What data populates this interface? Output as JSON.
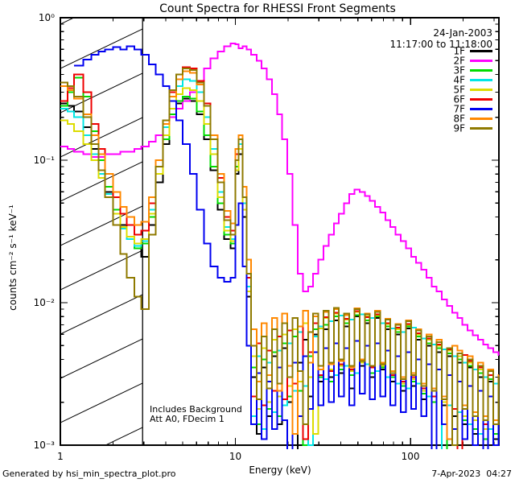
{
  "title": "Count Spectra for RHESSI Front Segments",
  "legend": {
    "date": "24-Jan-2003",
    "time_range": "11:17:00 to 11:18:00"
  },
  "notes": {
    "line1": "Includes Background",
    "line2": "Att A0, FDecim 1"
  },
  "footer": {
    "left": "Generated by hsi_min_spectra_plot.pro",
    "right": "7-Apr-2023  04:27"
  },
  "chart_data": {
    "type": "line",
    "style": "histogram-step",
    "title": "Count Spectra for RHESSI Front Segments",
    "xlabel": "Energy (keV)",
    "ylabel": "counts cm⁻² s⁻¹ keV⁻¹",
    "xscale": "log",
    "yscale": "log",
    "xlim": [
      1,
      320
    ],
    "ylim": [
      0.001,
      1.0
    ],
    "grid": false,
    "legend_position": "top-right",
    "hatched_low_energy_region_keV": [
      1.0,
      2.95
    ],
    "x_ticks": [
      {
        "value": 1,
        "label": "1"
      },
      {
        "value": 10,
        "label": "10"
      },
      {
        "value": 100,
        "label": "100"
      }
    ],
    "y_ticks": [
      {
        "value": 1,
        "label": "10⁰"
      },
      {
        "value": 0.1,
        "label": "10⁻¹"
      },
      {
        "value": 0.01,
        "label": "10⁻²"
      },
      {
        "value": 0.001,
        "label": "10⁻³"
      }
    ],
    "energies_keV": [
      1.0,
      1.1,
      1.2,
      1.35,
      1.5,
      1.65,
      1.8,
      2.0,
      2.2,
      2.4,
      2.65,
      2.9,
      3.2,
      3.5,
      3.85,
      4.2,
      4.6,
      5.0,
      5.5,
      6.0,
      6.6,
      7.2,
      7.9,
      8.6,
      9.4,
      10.0,
      10.45,
      11.0,
      11.6,
      12.3,
      13.2,
      14.1,
      15.1,
      16.2,
      17.3,
      18.5,
      19.8,
      21.2,
      22.7,
      24.3,
      26.0,
      27.8,
      29.8,
      31.9,
      34.1,
      36.5,
      39.0,
      41.8,
      44.7,
      47.8,
      51.2,
      54.8,
      58.6,
      62.7,
      67.1,
      71.8,
      76.8,
      82.2,
      88.0,
      94.1,
      100.7,
      107.8,
      115.3,
      123.4,
      132.0,
      141.2,
      151.1,
      161.7,
      173.0,
      185.1,
      198.1,
      212.0,
      226.8,
      242.7,
      259.7,
      277.9,
      297.3,
      318.1
    ],
    "series": [
      {
        "name": "1F",
        "color": "#000000",
        "values": [
          0.25,
          0.24,
          0.22,
          0.17,
          0.12,
          0.085,
          0.06,
          0.045,
          0.035,
          0.028,
          0.024,
          0.021,
          0.035,
          0.07,
          0.13,
          0.2,
          0.25,
          0.27,
          0.26,
          0.21,
          0.14,
          0.085,
          0.045,
          0.028,
          0.024,
          0.08,
          0.11,
          0.04,
          0.011,
          0.003,
          0.0012,
          0.0035,
          0.0016,
          0.0042,
          0.0014,
          0.0048,
          0.002,
          0.0009,
          0.0038,
          0.0055,
          0.0022,
          0.006,
          0.0028,
          0.0065,
          0.003,
          0.0075,
          0.0032,
          0.0068,
          0.0025,
          0.008,
          0.0036,
          0.0072,
          0.003,
          0.0078,
          0.0034,
          0.0065,
          0.0028,
          0.006,
          0.0024,
          0.0066,
          0.0026,
          0.0055,
          0.0021,
          0.005,
          0.0009,
          0.0045,
          0.0019,
          0.0042,
          0.0016,
          0.0038,
          0.0014,
          0.0035,
          0.0012,
          0.003,
          0.001,
          0.0028,
          0.0011,
          0.0024
        ]
      },
      {
        "name": "2F",
        "color": "#FF00FF",
        "values": [
          0.125,
          0.12,
          0.115,
          0.11,
          0.105,
          0.105,
          0.11,
          0.11,
          0.115,
          0.115,
          0.12,
          0.125,
          0.135,
          0.15,
          0.17,
          0.2,
          0.23,
          0.26,
          0.3,
          0.36,
          0.44,
          0.52,
          0.58,
          0.63,
          0.66,
          0.65,
          0.61,
          0.63,
          0.6,
          0.55,
          0.5,
          0.44,
          0.37,
          0.29,
          0.21,
          0.14,
          0.08,
          0.035,
          0.016,
          0.012,
          0.013,
          0.016,
          0.02,
          0.025,
          0.03,
          0.036,
          0.042,
          0.05,
          0.058,
          0.062,
          0.06,
          0.056,
          0.052,
          0.047,
          0.043,
          0.038,
          0.034,
          0.03,
          0.027,
          0.024,
          0.021,
          0.019,
          0.017,
          0.015,
          0.013,
          0.012,
          0.0105,
          0.0095,
          0.0085,
          0.0078,
          0.007,
          0.0064,
          0.0059,
          0.0055,
          0.0051,
          0.0048,
          0.0045,
          0.0043
        ]
      },
      {
        "name": "3F",
        "color": "#00DC00",
        "values": [
          0.24,
          0.3,
          0.38,
          0.28,
          0.16,
          0.1,
          0.065,
          0.045,
          0.034,
          0.028,
          0.024,
          0.026,
          0.04,
          0.08,
          0.14,
          0.21,
          0.26,
          0.28,
          0.27,
          0.22,
          0.15,
          0.09,
          0.05,
          0.03,
          0.026,
          0.09,
          0.13,
          0.045,
          0.012,
          0.0035,
          0.0014,
          0.004,
          0.0018,
          0.0045,
          0.0016,
          0.0052,
          0.0022,
          0.0058,
          0.0024,
          0.001,
          0.0042,
          0.0065,
          0.003,
          0.007,
          0.0028,
          0.008,
          0.0034,
          0.0072,
          0.0031,
          0.0082,
          0.0038,
          0.0075,
          0.0032,
          0.008,
          0.0035,
          0.0068,
          0.003,
          0.0062,
          0.0026,
          0.0068,
          0.0028,
          0.0058,
          0.0023,
          0.0052,
          0.002,
          0.0048,
          0.0009,
          0.0044,
          0.0018,
          0.004,
          0.0015,
          0.0036,
          0.0013,
          0.0032,
          0.0011,
          0.0029,
          0.0012,
          0.0026
        ]
      },
      {
        "name": "4F",
        "color": "#00E6E6",
        "values": [
          0.23,
          0.22,
          0.2,
          0.15,
          0.11,
          0.08,
          0.058,
          0.042,
          0.033,
          0.028,
          0.025,
          0.027,
          0.045,
          0.09,
          0.17,
          0.26,
          0.33,
          0.37,
          0.36,
          0.3,
          0.2,
          0.12,
          0.06,
          0.034,
          0.028,
          0.1,
          0.13,
          0.05,
          0.013,
          0.0016,
          0.0042,
          0.0013,
          0.0038,
          0.0017,
          0.0046,
          0.0019,
          0.0052,
          0.0024,
          0.0062,
          0.0026,
          0.001,
          0.0058,
          0.0068,
          0.0029,
          0.0074,
          0.0031,
          0.0081,
          0.0036,
          0.0076,
          0.0032,
          0.0083,
          0.0037,
          0.0078,
          0.0033,
          0.0072,
          0.003,
          0.0066,
          0.0027,
          0.0062,
          0.0025,
          0.0067,
          0.0027,
          0.0056,
          0.0022,
          0.0051,
          0.0009,
          0.0047,
          0.0019,
          0.0042,
          0.0017,
          0.0038,
          0.0014,
          0.0034,
          0.0012,
          0.003,
          0.0013,
          0.0027,
          0.0024
        ]
      },
      {
        "name": "5F",
        "color": "#DCDC00",
        "values": [
          0.19,
          0.18,
          0.16,
          0.13,
          0.1,
          0.075,
          0.055,
          0.042,
          0.034,
          0.029,
          0.026,
          0.028,
          0.042,
          0.08,
          0.15,
          0.23,
          0.29,
          0.32,
          0.31,
          0.26,
          0.18,
          0.11,
          0.055,
          0.032,
          0.027,
          0.085,
          0.12,
          0.045,
          0.012,
          0.0042,
          0.0018,
          0.0048,
          0.002,
          0.0055,
          0.0022,
          0.006,
          0.0026,
          0.0065,
          0.0028,
          0.0072,
          0.003,
          0.0012,
          0.0066,
          0.0078,
          0.0034,
          0.0084,
          0.0036,
          0.0076,
          0.0033,
          0.0086,
          0.0038,
          0.008,
          0.0035,
          0.0082,
          0.0036,
          0.0071,
          0.0031,
          0.0065,
          0.0027,
          0.007,
          0.0029,
          0.006,
          0.0024,
          0.0055,
          0.0022,
          0.005,
          0.002,
          0.0046,
          0.001,
          0.0042,
          0.0016,
          0.0038,
          0.0015,
          0.0034,
          0.0013,
          0.0031,
          0.0014,
          0.0028
        ]
      },
      {
        "name": "6F",
        "color": "#EE0000",
        "values": [
          0.26,
          0.32,
          0.4,
          0.3,
          0.18,
          0.12,
          0.08,
          0.055,
          0.042,
          0.035,
          0.03,
          0.032,
          0.05,
          0.1,
          0.19,
          0.3,
          0.4,
          0.45,
          0.44,
          0.36,
          0.25,
          0.15,
          0.075,
          0.04,
          0.032,
          0.11,
          0.14,
          0.055,
          0.015,
          0.0022,
          0.0052,
          0.0019,
          0.0046,
          0.0024,
          0.0058,
          0.0021,
          0.0064,
          0.0027,
          0.0068,
          0.0011,
          0.0045,
          0.0072,
          0.0031,
          0.0079,
          0.0033,
          0.0085,
          0.0037,
          0.0077,
          0.0034,
          0.0087,
          0.0039,
          0.0079,
          0.0035,
          0.0083,
          0.0037,
          0.0072,
          0.0031,
          0.0067,
          0.0028,
          0.0071,
          0.003,
          0.0061,
          0.0025,
          0.0056,
          0.0022,
          0.0051,
          0.0021,
          0.0047,
          0.0018,
          0.0009,
          0.0043,
          0.0039,
          0.0016,
          0.0035,
          0.0014,
          0.0031,
          0.0015,
          0.0029
        ]
      },
      {
        "name": "7F",
        "color": "#0000F0",
        "values": [
          null,
          null,
          0.46,
          0.51,
          0.55,
          0.58,
          0.6,
          0.62,
          0.6,
          0.63,
          0.6,
          0.55,
          0.47,
          0.4,
          0.33,
          0.26,
          0.19,
          0.13,
          0.08,
          0.045,
          0.026,
          0.018,
          0.015,
          0.014,
          0.015,
          0.035,
          0.05,
          0.018,
          0.005,
          0.0014,
          0.0032,
          0.0011,
          0.0028,
          0.0013,
          0.0035,
          0.0015,
          0.0009,
          0.0038,
          0.0016,
          0.0042,
          0.0018,
          0.0045,
          0.0019,
          0.0048,
          0.002,
          0.0052,
          0.0022,
          0.0048,
          0.0019,
          0.0054,
          0.0023,
          0.005,
          0.0021,
          0.0052,
          0.0022,
          0.0046,
          0.0019,
          0.0042,
          0.0017,
          0.0045,
          0.0018,
          0.004,
          0.0016,
          0.0037,
          0.0009,
          0.0034,
          0.0014,
          0.0031,
          0.0013,
          0.0028,
          0.0011,
          0.0026,
          0.001,
          0.0024,
          0.0009,
          0.0022,
          0.001,
          0.002
        ]
      },
      {
        "name": "8F",
        "color": "#FF8800",
        "values": [
          0.33,
          0.31,
          0.27,
          0.21,
          0.15,
          0.11,
          0.08,
          0.06,
          0.047,
          0.04,
          0.035,
          0.037,
          0.055,
          0.1,
          0.18,
          0.28,
          0.37,
          0.42,
          0.41,
          0.34,
          0.24,
          0.15,
          0.08,
          0.044,
          0.036,
          0.12,
          0.15,
          0.065,
          0.02,
          0.0065,
          0.0028,
          0.0072,
          0.0031,
          0.0078,
          0.0024,
          0.0084,
          0.0036,
          0.0012,
          0.0068,
          0.0088,
          0.0038,
          0.008,
          0.0034,
          0.0086,
          0.0037,
          0.009,
          0.0039,
          0.0082,
          0.0035,
          0.0091,
          0.004,
          0.0084,
          0.0036,
          0.0088,
          0.0038,
          0.0077,
          0.0033,
          0.0071,
          0.003,
          0.0075,
          0.0032,
          0.0065,
          0.0027,
          0.006,
          0.0025,
          0.0055,
          0.0022,
          0.0011,
          0.005,
          0.0046,
          0.0019,
          0.0042,
          0.0017,
          0.0038,
          0.0016,
          0.0034,
          0.0015,
          0.0031
        ]
      },
      {
        "name": "9F",
        "color": "#8F7A00",
        "values": [
          0.35,
          0.33,
          0.28,
          0.2,
          0.13,
          0.085,
          0.055,
          0.035,
          0.022,
          0.015,
          0.011,
          0.009,
          0.03,
          0.09,
          0.19,
          0.31,
          0.4,
          0.44,
          0.43,
          0.35,
          0.24,
          0.14,
          0.07,
          0.038,
          0.03,
          0.1,
          0.14,
          0.055,
          0.016,
          0.005,
          0.0021,
          0.0058,
          0.0025,
          0.0065,
          0.0027,
          0.0072,
          0.003,
          0.0078,
          0.0033,
          0.0014,
          0.0062,
          0.0084,
          0.0036,
          0.0088,
          0.0038,
          0.0092,
          0.004,
          0.0084,
          0.0036,
          0.009,
          0.0039,
          0.0083,
          0.0036,
          0.0086,
          0.0037,
          0.0076,
          0.0032,
          0.007,
          0.0029,
          0.0074,
          0.0031,
          0.0064,
          0.0026,
          0.0058,
          0.0024,
          0.0053,
          0.0021,
          0.0048,
          0.001,
          0.0044,
          0.0018,
          0.004,
          0.0016,
          0.0036,
          0.0015,
          0.0033,
          0.0014,
          0.003
        ]
      }
    ]
  }
}
